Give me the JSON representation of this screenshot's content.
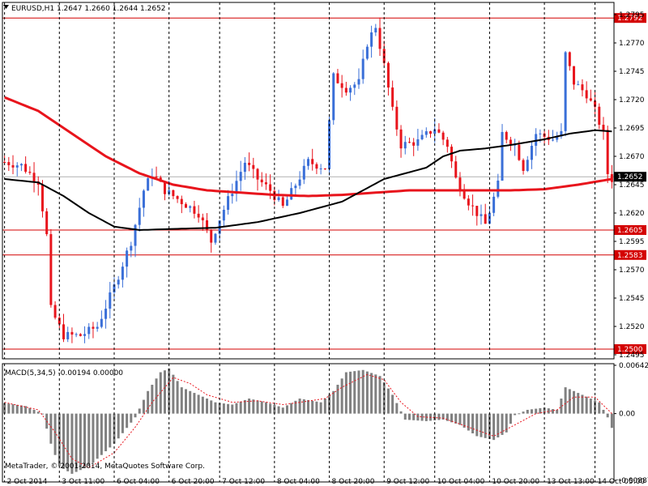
{
  "chart_data": [
    {
      "type": "candlestick",
      "symbol_header": "EURUSD,H1  1.2647 1.2660 1.2644 1.2652",
      "ylim": [
        1.2495,
        1.2795
      ],
      "y_ticks": [
        "1.2795",
        "1.2770",
        "1.2745",
        "1.2720",
        "1.2695",
        "1.2670",
        "1.2645",
        "1.2620",
        "1.2595",
        "1.2570",
        "1.2545",
        "1.2520",
        "1.2495"
      ],
      "x_ticks": [
        "2 Oct 2014",
        "3 Oct 11:00",
        "6 Oct 04:00",
        "6 Oct 20:00",
        "7 Oct 12:00",
        "8 Oct 04:00",
        "8 Oct 20:00",
        "9 Oct 12:00",
        "10 Oct 04:00",
        "10 Oct 20:00",
        "13 Oct 13:00",
        "14 Oct 05:00"
      ],
      "horizontal_levels": [
        {
          "value": 1.2792,
          "label": "1.2792"
        },
        {
          "value": 1.2605,
          "label": "1.2605"
        },
        {
          "value": 1.2583,
          "label": "1.2583"
        },
        {
          "value": 1.25,
          "label": "1.2500"
        }
      ],
      "current_price": {
        "value": 1.2652,
        "label": "1.2652"
      },
      "close_path": [
        [
          0,
          1.2665
        ],
        [
          4,
          1.2662
        ],
        [
          8,
          1.2648
        ],
        [
          10,
          1.26
        ],
        [
          11,
          1.2535
        ],
        [
          14,
          1.2512
        ],
        [
          18,
          1.2512
        ],
        [
          22,
          1.252
        ],
        [
          26,
          1.2555
        ],
        [
          30,
          1.2595
        ],
        [
          33,
          1.264
        ],
        [
          35,
          1.2655
        ],
        [
          38,
          1.264
        ],
        [
          42,
          1.263
        ],
        [
          46,
          1.262
        ],
        [
          49,
          1.2595
        ],
        [
          51,
          1.2615
        ],
        [
          54,
          1.264
        ],
        [
          57,
          1.2665
        ],
        [
          60,
          1.265
        ],
        [
          63,
          1.264
        ],
        [
          66,
          1.2625
        ],
        [
          69,
          1.2645
        ],
        [
          72,
          1.2665
        ],
        [
          76,
          1.266
        ],
        [
          78,
          1.274
        ],
        [
          81,
          1.273
        ],
        [
          84,
          1.2735
        ],
        [
          86,
          1.277
        ],
        [
          88,
          1.2785
        ],
        [
          90,
          1.275
        ],
        [
          92,
          1.271
        ],
        [
          94,
          1.268
        ],
        [
          98,
          1.2683
        ],
        [
          102,
          1.2695
        ],
        [
          105,
          1.268
        ],
        [
          107,
          1.265
        ],
        [
          110,
          1.263
        ],
        [
          112,
          1.262
        ],
        [
          114,
          1.261
        ],
        [
          117,
          1.2645
        ],
        [
          118,
          1.269
        ],
        [
          121,
          1.268
        ],
        [
          123,
          1.266
        ],
        [
          126,
          1.269
        ],
        [
          130,
          1.2685
        ],
        [
          132,
          1.269
        ],
        [
          133,
          1.276
        ],
        [
          135,
          1.2735
        ],
        [
          138,
          1.2725
        ],
        [
          140,
          1.271
        ],
        [
          142,
          1.269
        ],
        [
          143,
          1.2655
        ],
        [
          144,
          1.265
        ]
      ],
      "series": [
        {
          "name": "",
          "values_path": [
            [
              0,
              1.2722
            ],
            [
              8,
              1.271
            ],
            [
              16,
              1.269
            ],
            [
              24,
              1.267
            ],
            [
              32,
              1.2655
            ],
            [
              40,
              1.2645
            ],
            [
              48,
              1.264
            ],
            [
              56,
              1.2638
            ],
            [
              64,
              1.2636
            ],
            [
              72,
              1.2635
            ],
            [
              80,
              1.2636
            ],
            [
              88,
              1.2638
            ],
            [
              96,
              1.264
            ],
            [
              104,
              1.264
            ],
            [
              112,
              1.264
            ],
            [
              120,
              1.264
            ],
            [
              128,
              1.2641
            ],
            [
              136,
              1.2645
            ],
            [
              144,
              1.265
            ]
          ]
        },
        {
          "name": "",
          "values_path": [
            [
              0,
              1.265
            ],
            [
              8,
              1.2647
            ],
            [
              14,
              1.2635
            ],
            [
              20,
              1.262
            ],
            [
              26,
              1.2608
            ],
            [
              32,
              1.2605
            ],
            [
              40,
              1.2606
            ],
            [
              50,
              1.2607
            ],
            [
              60,
              1.2612
            ],
            [
              70,
              1.262
            ],
            [
              80,
              1.263
            ],
            [
              90,
              1.265
            ],
            [
              100,
              1.266
            ],
            [
              104,
              1.267
            ],
            [
              108,
              1.2675
            ],
            [
              114,
              1.2677
            ],
            [
              120,
              1.268
            ],
            [
              128,
              1.2685
            ],
            [
              134,
              1.269
            ],
            [
              140,
              1.2693
            ],
            [
              144,
              1.2692
            ]
          ]
        }
      ]
    },
    {
      "type": "bar",
      "title": "MACD(5,34,5) -0.00194 0.00000",
      "ylim": [
        -0.00887,
        0.00642
      ],
      "y_ticks": [
        "0.00642",
        "0.00",
        "-0.00887"
      ],
      "values_path": [
        [
          0,
          0.0014
        ],
        [
          5,
          0.001
        ],
        [
          9,
          0.0
        ],
        [
          11,
          -0.004
        ],
        [
          13,
          -0.007
        ],
        [
          16,
          -0.008
        ],
        [
          20,
          -0.007
        ],
        [
          26,
          -0.004
        ],
        [
          31,
          -0.0005
        ],
        [
          34,
          0.003
        ],
        [
          37,
          0.0055
        ],
        [
          39,
          0.006
        ],
        [
          42,
          0.0035
        ],
        [
          46,
          0.0025
        ],
        [
          50,
          0.0015
        ],
        [
          54,
          0.0012
        ],
        [
          58,
          0.002
        ],
        [
          62,
          0.0015
        ],
        [
          66,
          0.0008
        ],
        [
          70,
          0.002
        ],
        [
          75,
          0.0015
        ],
        [
          78,
          0.003
        ],
        [
          81,
          0.0055
        ],
        [
          85,
          0.0058
        ],
        [
          89,
          0.005
        ],
        [
          92,
          0.0025
        ],
        [
          95,
          -0.0008
        ],
        [
          100,
          -0.001
        ],
        [
          104,
          -0.0008
        ],
        [
          108,
          -0.0015
        ],
        [
          112,
          -0.003
        ],
        [
          116,
          -0.0035
        ],
        [
          119,
          -0.0025
        ],
        [
          121,
          -0.0002
        ],
        [
          124,
          0.0005
        ],
        [
          128,
          0.0008
        ],
        [
          131,
          0.0005
        ],
        [
          133,
          0.0035
        ],
        [
          137,
          0.0025
        ],
        [
          141,
          0.0015
        ],
        [
          143,
          -0.0005
        ],
        [
          144,
          -0.0019
        ]
      ],
      "signal_path": [
        [
          0,
          0.0015
        ],
        [
          8,
          0.0005
        ],
        [
          12,
          -0.0025
        ],
        [
          16,
          -0.006
        ],
        [
          20,
          -0.0072
        ],
        [
          26,
          -0.0052
        ],
        [
          31,
          -0.0018
        ],
        [
          35,
          0.0015
        ],
        [
          40,
          0.0048
        ],
        [
          44,
          0.004
        ],
        [
          48,
          0.0025
        ],
        [
          54,
          0.0015
        ],
        [
          60,
          0.0017
        ],
        [
          66,
          0.0012
        ],
        [
          70,
          0.0015
        ],
        [
          76,
          0.002
        ],
        [
          80,
          0.0035
        ],
        [
          86,
          0.0052
        ],
        [
          90,
          0.0045
        ],
        [
          94,
          0.0015
        ],
        [
          98,
          -0.0004
        ],
        [
          104,
          -0.0006
        ],
        [
          110,
          -0.0018
        ],
        [
          116,
          -0.003
        ],
        [
          121,
          -0.0015
        ],
        [
          126,
          0.0
        ],
        [
          131,
          0.0005
        ],
        [
          135,
          0.0022
        ],
        [
          140,
          0.0022
        ],
        [
          144,
          0.0
        ]
      ]
    }
  ],
  "chrome": {
    "copyright": "MetaTrader, © 2001-2014, MetaQuotes Software Corp."
  },
  "colors": {
    "bull": "#3a6fd8",
    "bear": "#e8141c",
    "ma_red": "#e8141c",
    "ma_black": "#000000",
    "level": "#d40000",
    "current": "#b0b0b0",
    "macd_bar": "#808080",
    "signal": "#e8141c",
    "grid": "#000000"
  }
}
